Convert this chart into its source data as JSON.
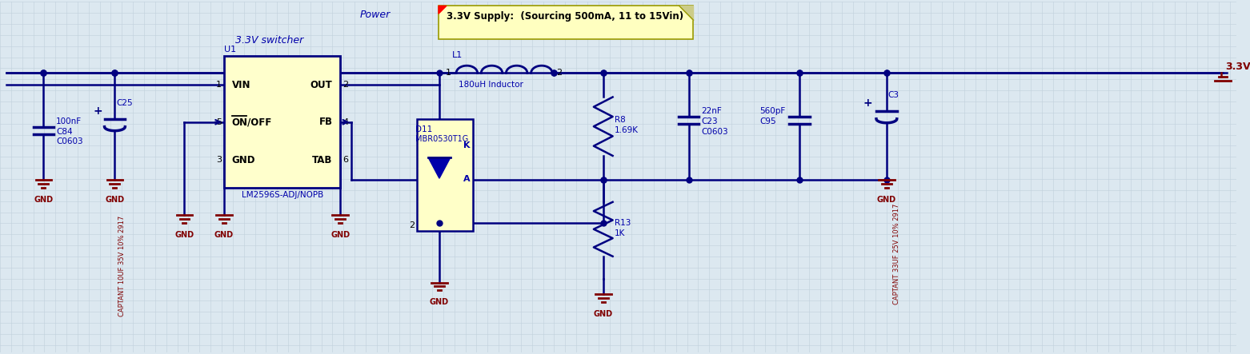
{
  "bg_color": "#dce8f0",
  "grid_color": "#c0d0dc",
  "wire_color": "#000080",
  "text_blue": "#0000aa",
  "text_red": "#800000",
  "ic_fill": "#ffffcc",
  "ic_border": "#000080",
  "gnd_color": "#800000",
  "note_fill": "#ffffc0",
  "note_border": "#c0c000",
  "title": "Power",
  "subtitle": "3.3V switcher",
  "note_text": "3.3V Supply:  (Sourcing 500mA, 11 to 15Vin)",
  "supply_label": "3.3V",
  "u1_label": "U1",
  "u1_part": "LM2596S-ADJ/NOPB",
  "pin_vin": "VIN",
  "pin_out": "OUT",
  "pin_on": "ON/OFF",
  "pin_fb": "FB",
  "pin_gnd_ic": "GND",
  "pin_tab": "TAB",
  "l1_label": "L1",
  "l1_val": "180uH Inductor",
  "d11_label": "D11",
  "d11_val": "MBR0530T1G",
  "r8_label": "R8",
  "r8_val": "1.69K",
  "r13_label": "R13",
  "r13_val": "1K",
  "c84_val": "100nF",
  "c84_label": "C84",
  "c84_type": "C0603",
  "c25_label": "C25",
  "c25_rotated": "CAPTANT 10UF 35V 10% 2917",
  "c23_val": "22nF",
  "c23_label": "C23",
  "c23_type": "C0603",
  "c95_val": "560pF",
  "c95_label": "C95",
  "c3_label": "C3",
  "c3_rotated": "CAPTANT 33UF 25V 10% 2917"
}
